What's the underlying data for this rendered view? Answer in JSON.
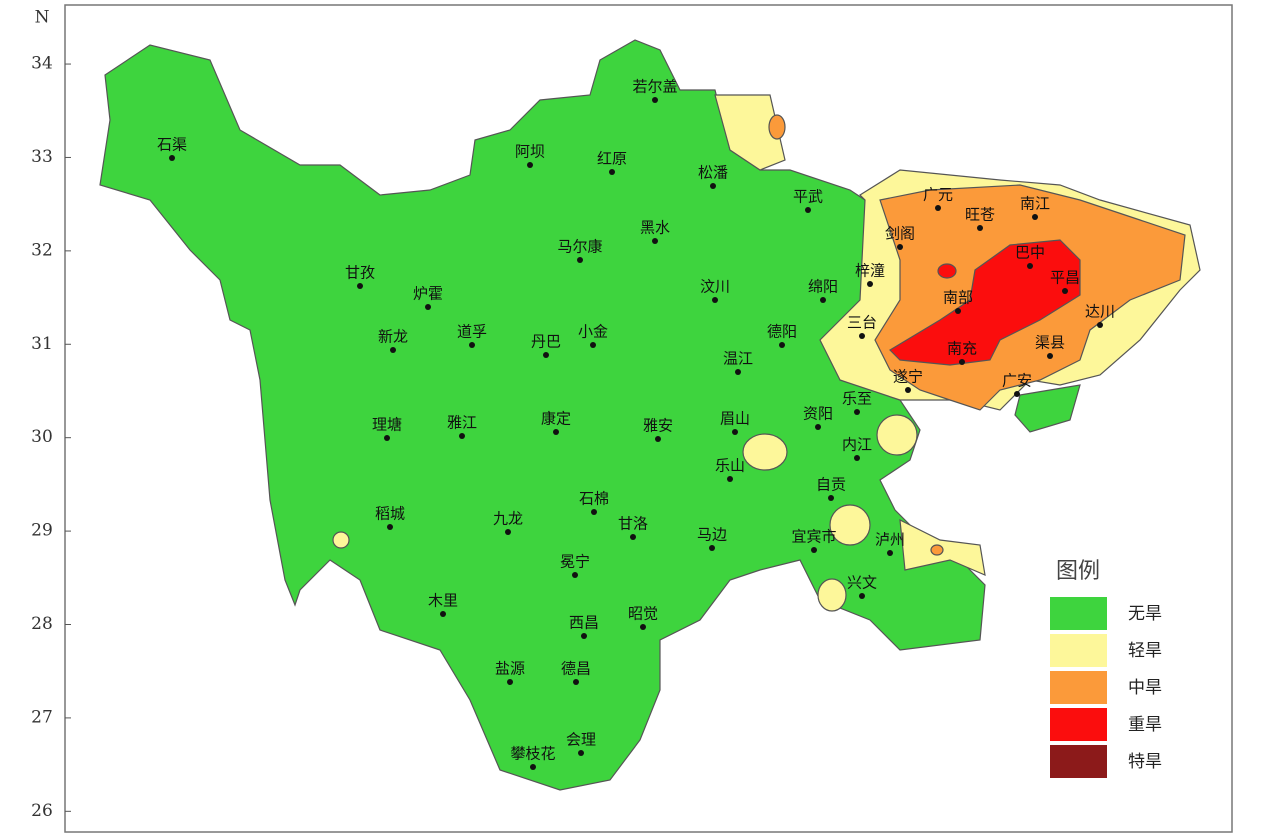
{
  "map": {
    "axis_label": "N",
    "ylim": [
      25.8,
      34.6
    ],
    "yticks": [
      26,
      27,
      28,
      29,
      30,
      31,
      32,
      33,
      34
    ]
  },
  "cities": [
    "石渠",
    "若尔盖",
    "阿坝",
    "红原",
    "松潘",
    "平武",
    "广元",
    "旺苍",
    "南江",
    "剑阁",
    "马尔康",
    "黑水",
    "巴中",
    "平昌",
    "甘孜",
    "炉霍",
    "梓潼",
    "汶川",
    "绵阳",
    "南部",
    "达川",
    "新龙",
    "道孚",
    "丹巴",
    "小金",
    "德阳",
    "三台",
    "南充",
    "渠县",
    "温江",
    "遂宁",
    "广安",
    "理塘",
    "雅江",
    "康定",
    "雅安",
    "眉山",
    "资阳",
    "乐至",
    "内江",
    "乐山",
    "自贡",
    "稻城",
    "九龙",
    "石棉",
    "甘洛",
    "马边",
    "宜宾市",
    "泸州",
    "冕宁",
    "兴文",
    "木里",
    "西昌",
    "昭觉",
    "盐源",
    "德昌",
    "攀枝花",
    "会理"
  ],
  "legend": {
    "title": "图例",
    "items": [
      {
        "label": "无旱",
        "color": "#3ed43e"
      },
      {
        "label": "轻旱",
        "color": "#fdf79a"
      },
      {
        "label": "中旱",
        "color": "#fb9a3a"
      },
      {
        "label": "重旱",
        "color": "#fb0d0d"
      },
      {
        "label": "特旱",
        "color": "#8c1a1a"
      }
    ]
  }
}
